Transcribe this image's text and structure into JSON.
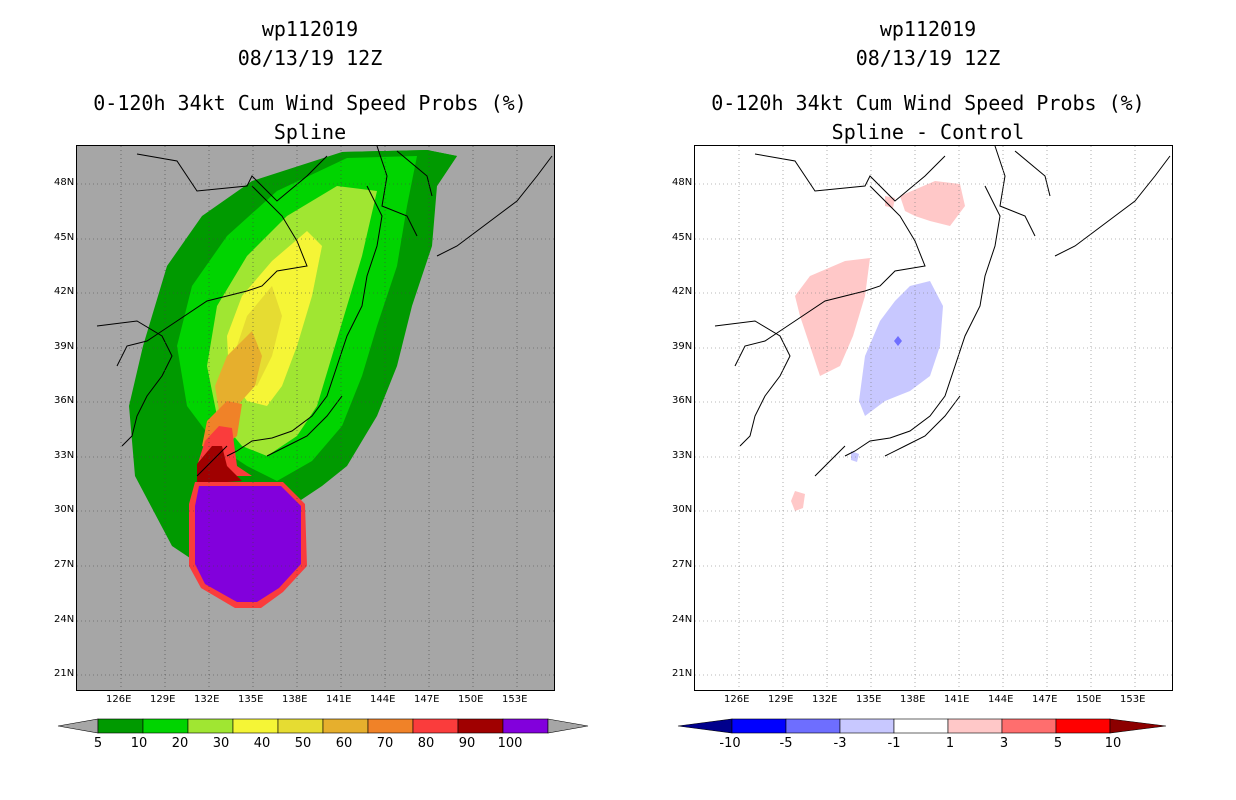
{
  "left": {
    "storm_id": "wp112019",
    "datetime": "08/13/19 12Z",
    "product": "0-120h 34kt Cum Wind Speed Probs (%)",
    "subtitle": "Spline",
    "lat_ticks": [
      "48N",
      "45N",
      "42N",
      "39N",
      "36N",
      "33N",
      "30N",
      "27N",
      "24N",
      "21N"
    ],
    "lon_ticks": [
      "126E",
      "129E",
      "132E",
      "135E",
      "138E",
      "141E",
      "144E",
      "147E",
      "150E",
      "153E"
    ],
    "colorbar": {
      "levels": [
        "5",
        "10",
        "20",
        "30",
        "40",
        "50",
        "60",
        "70",
        "80",
        "90",
        "100"
      ],
      "colors": [
        "#009a00",
        "#00d400",
        "#a0e632",
        "#f5f536",
        "#e6dc32",
        "#e6af2d",
        "#f08228",
        "#fa3c3c",
        "#a00000",
        "#8200dc"
      ],
      "under_color": "#a6a6a6",
      "over_color": "#a6a6a6",
      "background": "#a6a6a6"
    }
  },
  "right": {
    "storm_id": "wp112019",
    "datetime": "08/13/19 12Z",
    "product": "0-120h 34kt Cum Wind Speed Probs (%)",
    "subtitle": "Spline - Control",
    "lat_ticks": [
      "48N",
      "45N",
      "42N",
      "39N",
      "36N",
      "33N",
      "30N",
      "27N",
      "24N",
      "21N"
    ],
    "lon_ticks": [
      "126E",
      "129E",
      "132E",
      "135E",
      "138E",
      "141E",
      "144E",
      "147E",
      "150E",
      "153E"
    ],
    "colorbar": {
      "levels": [
        "-10",
        "-5",
        "-3",
        "-1",
        "1",
        "3",
        "5",
        "10"
      ],
      "colors": [
        "#0000ff",
        "#6e6eff",
        "#c8c8ff",
        "#ffffff",
        "#ffc8c8",
        "#ff6e6e",
        "#ff0000"
      ],
      "under_color": "#00008c",
      "over_color": "#8c0000",
      "background": "#ffffff"
    }
  }
}
